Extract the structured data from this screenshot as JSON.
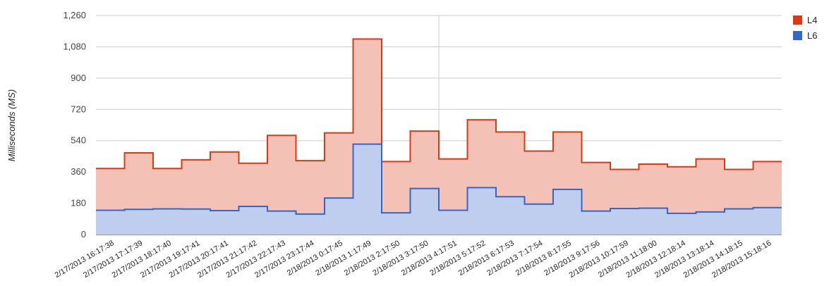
{
  "chart_data": {
    "type": "area",
    "stepped": true,
    "ylabel": "Milliseconds (MS)",
    "xlabel": "",
    "ylim": [
      0,
      1260
    ],
    "yticks": [
      "0",
      "180",
      "360",
      "540",
      "720",
      "900",
      "1,080",
      "1,260"
    ],
    "ytick_values": [
      0,
      180,
      360,
      540,
      720,
      900,
      1080,
      1260
    ],
    "grid": true,
    "legend_position": "right",
    "x": [
      "2/17/2013 16:17:38",
      "2/17/2013 17:17:39",
      "2/17/2013 18:17:40",
      "2/17/2013 19:17:41",
      "2/17/2013 20:17:41",
      "2/17/2013 21:17:42",
      "2/17/2013 22:17:43",
      "2/17/2013 23:17:44",
      "2/18/2013 0:17:45",
      "2/18/2013 1:17:49",
      "2/18/2013 2:17:50",
      "2/18/2013 3:17:50",
      "2/18/2013 4:17:51",
      "2/18/2013 5:17:52",
      "2/18/2013 6:17:53",
      "2/18/2013 7:17:54",
      "2/18/2013 8:17:55",
      "2/18/2013 9:17:56",
      "2/18/2013 10:17:59",
      "2/18/2013 11:18:00",
      "2/18/2013 12:18:14",
      "2/18/2013 13:18:14",
      "2/18/2013 14:18:15",
      "2/18/2013 15:18:16"
    ],
    "series": [
      {
        "name": "L4",
        "color": "#dc3912",
        "fill": "#f3c1b5",
        "values": [
          380,
          470,
          380,
          430,
          475,
          410,
          570,
          425,
          585,
          1125,
          420,
          595,
          435,
          660,
          590,
          480,
          590,
          415,
          375,
          405,
          390,
          435,
          375,
          420
        ]
      },
      {
        "name": "L6",
        "color": "#3366cc",
        "fill": "#bfcdef",
        "values": [
          140,
          145,
          148,
          147,
          138,
          162,
          135,
          118,
          210,
          520,
          125,
          265,
          140,
          270,
          218,
          175,
          260,
          135,
          150,
          152,
          122,
          130,
          148,
          155
        ]
      }
    ]
  }
}
